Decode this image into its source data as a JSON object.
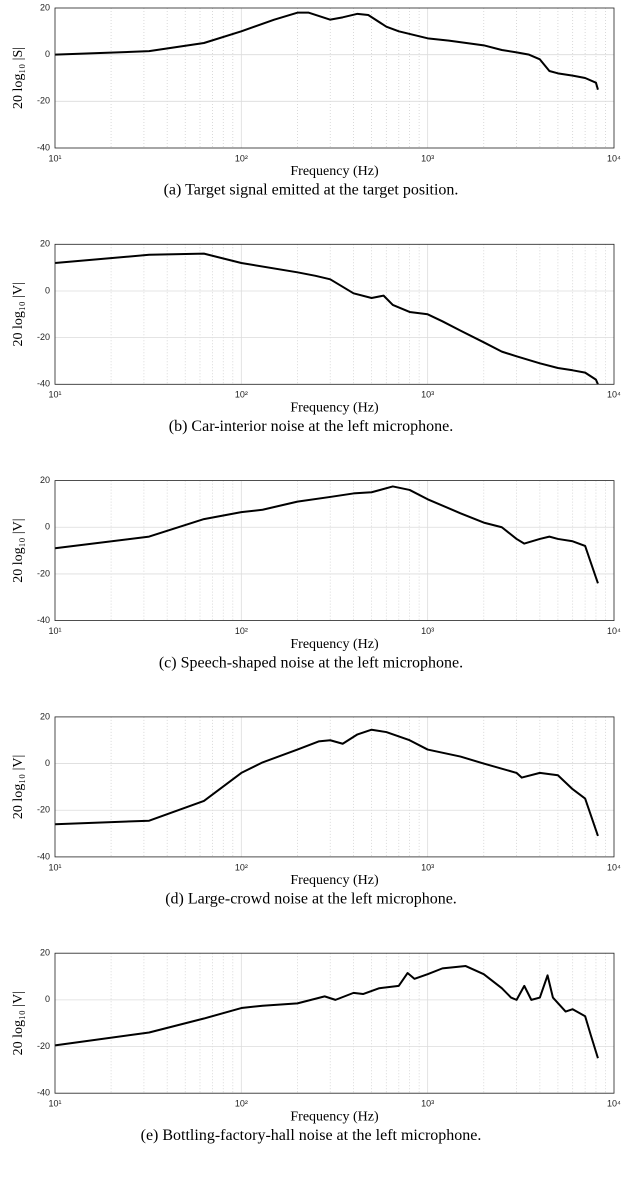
{
  "chart_data": [
    {
      "type": "line",
      "caption": "(a) Target signal emitted at the target position.",
      "x_label": "Frequency (Hz)",
      "y_label": "20 log₁₀ |S|",
      "log_x": true,
      "grid": true,
      "color": "#000000",
      "x": [
        10,
        32,
        63,
        100,
        150,
        200,
        230,
        300,
        350,
        420,
        480,
        600,
        700,
        1000,
        1300,
        2000,
        2500,
        3000,
        3500,
        4000,
        4500,
        5000,
        6000,
        7000,
        8000,
        8200
      ],
      "values": [
        0,
        1.5,
        5,
        10,
        15,
        18,
        18,
        15,
        16,
        17.5,
        17,
        12,
        10,
        7,
        6,
        4,
        2,
        1,
        0,
        -2,
        -7,
        -8,
        -9,
        -10,
        -12,
        -15
      ],
      "xlim": [
        10,
        10000
      ],
      "xticks": [
        {
          "value": 10,
          "label": "10¹"
        },
        {
          "value": 100,
          "label": "10²"
        },
        {
          "value": 1000,
          "label": "10³"
        },
        {
          "value": 10000,
          "label": "10⁴"
        }
      ],
      "ylim": [
        -40,
        20
      ],
      "yticks": [
        -40,
        -20,
        0,
        20
      ]
    },
    {
      "type": "line",
      "caption": "(b) Car-interior noise at the left microphone.",
      "x_label": "Frequency (Hz)",
      "y_label": "20 log₁₀ |V|",
      "log_x": true,
      "grid": true,
      "color": "#000000",
      "x": [
        10,
        32,
        63,
        100,
        200,
        250,
        300,
        400,
        500,
        580,
        650,
        800,
        1000,
        1200,
        1500,
        2000,
        2500,
        3000,
        4000,
        5000,
        6000,
        7000,
        8000,
        8200
      ],
      "values": [
        12,
        15.5,
        16,
        12,
        8,
        6.5,
        5,
        -1,
        -3,
        -2,
        -6,
        -9,
        -10,
        -13,
        -17,
        -22,
        -26,
        -28,
        -31,
        -33,
        -34,
        -35,
        -38,
        -40
      ],
      "xlim": [
        10,
        10000
      ],
      "xticks": [
        {
          "value": 10,
          "label": "10¹"
        },
        {
          "value": 100,
          "label": "10²"
        },
        {
          "value": 1000,
          "label": "10³"
        },
        {
          "value": 10000,
          "label": "10⁴"
        }
      ],
      "ylim": [
        -40,
        20
      ],
      "yticks": [
        -40,
        -20,
        0,
        20
      ]
    },
    {
      "type": "line",
      "caption": "(c) Speech-shaped noise at the left microphone.",
      "x_label": "Frequency (Hz)",
      "y_label": "20 log₁₀ |V|",
      "log_x": true,
      "grid": true,
      "color": "#000000",
      "x": [
        10,
        32,
        63,
        100,
        130,
        200,
        300,
        400,
        500,
        650,
        800,
        1000,
        1500,
        2000,
        2500,
        3000,
        3300,
        4000,
        4500,
        5000,
        6000,
        7000,
        7500,
        8200
      ],
      "values": [
        -9,
        -4,
        3.5,
        6.5,
        7.5,
        11,
        13,
        14.5,
        15,
        17.5,
        16,
        12,
        6,
        2,
        0,
        -5,
        -7,
        -5,
        -4,
        -5,
        -6,
        -8,
        -15,
        -24
      ],
      "xlim": [
        10,
        10000
      ],
      "xticks": [
        {
          "value": 10,
          "label": "10¹"
        },
        {
          "value": 100,
          "label": "10²"
        },
        {
          "value": 1000,
          "label": "10³"
        },
        {
          "value": 10000,
          "label": "10⁴"
        }
      ],
      "ylim": [
        -40,
        20
      ],
      "yticks": [
        -40,
        -20,
        0,
        20
      ]
    },
    {
      "type": "line",
      "caption": "(d) Large-crowd noise at the left microphone.",
      "x_label": "Frequency (Hz)",
      "y_label": "20 log₁₀ |V|",
      "log_x": true,
      "grid": true,
      "color": "#000000",
      "x": [
        10,
        32,
        63,
        100,
        130,
        200,
        260,
        300,
        350,
        420,
        500,
        600,
        800,
        1000,
        1500,
        2000,
        3000,
        3200,
        4000,
        5000,
        6000,
        7000,
        8200
      ],
      "values": [
        -26,
        -24.5,
        -16,
        -4,
        0.5,
        6,
        9.5,
        10,
        8.5,
        12.5,
        14.5,
        13.5,
        10,
        6,
        3,
        0,
        -4,
        -6,
        -4,
        -5,
        -11,
        -15,
        -31
      ],
      "xlim": [
        10,
        10000
      ],
      "xticks": [
        {
          "value": 10,
          "label": "10¹"
        },
        {
          "value": 100,
          "label": "10²"
        },
        {
          "value": 1000,
          "label": "10³"
        },
        {
          "value": 10000,
          "label": "10⁴"
        }
      ],
      "ylim": [
        -40,
        20
      ],
      "yticks": [
        -40,
        -20,
        0,
        20
      ]
    },
    {
      "type": "line",
      "caption": "(e) Bottling-factory-hall noise at the left microphone.",
      "x_label": "Frequency (Hz)",
      "y_label": "20 log₁₀ |V|",
      "log_x": true,
      "grid": true,
      "color": "#000000",
      "x": [
        10,
        32,
        63,
        100,
        130,
        200,
        280,
        320,
        400,
        450,
        550,
        700,
        780,
        850,
        1000,
        1200,
        1600,
        2000,
        2500,
        2800,
        3000,
        3300,
        3600,
        4000,
        4400,
        4700,
        5500,
        6000,
        7000,
        7500,
        8200
      ],
      "values": [
        -19.5,
        -14,
        -8,
        -3.5,
        -2.5,
        -1.5,
        1.5,
        0,
        3,
        2.5,
        5,
        6,
        11.5,
        9,
        11,
        13.5,
        14.5,
        11,
        5,
        1,
        0,
        6,
        0,
        1,
        10.5,
        1,
        -5,
        -4,
        -7,
        -15,
        -25
      ],
      "xlim": [
        10,
        10000
      ],
      "xticks": [
        {
          "value": 10,
          "label": "10¹"
        },
        {
          "value": 100,
          "label": "10²"
        },
        {
          "value": 1000,
          "label": "10³"
        },
        {
          "value": 10000,
          "label": "10⁴"
        }
      ],
      "ylim": [
        -40,
        20
      ],
      "yticks": [
        -40,
        -20,
        0,
        20
      ]
    }
  ]
}
